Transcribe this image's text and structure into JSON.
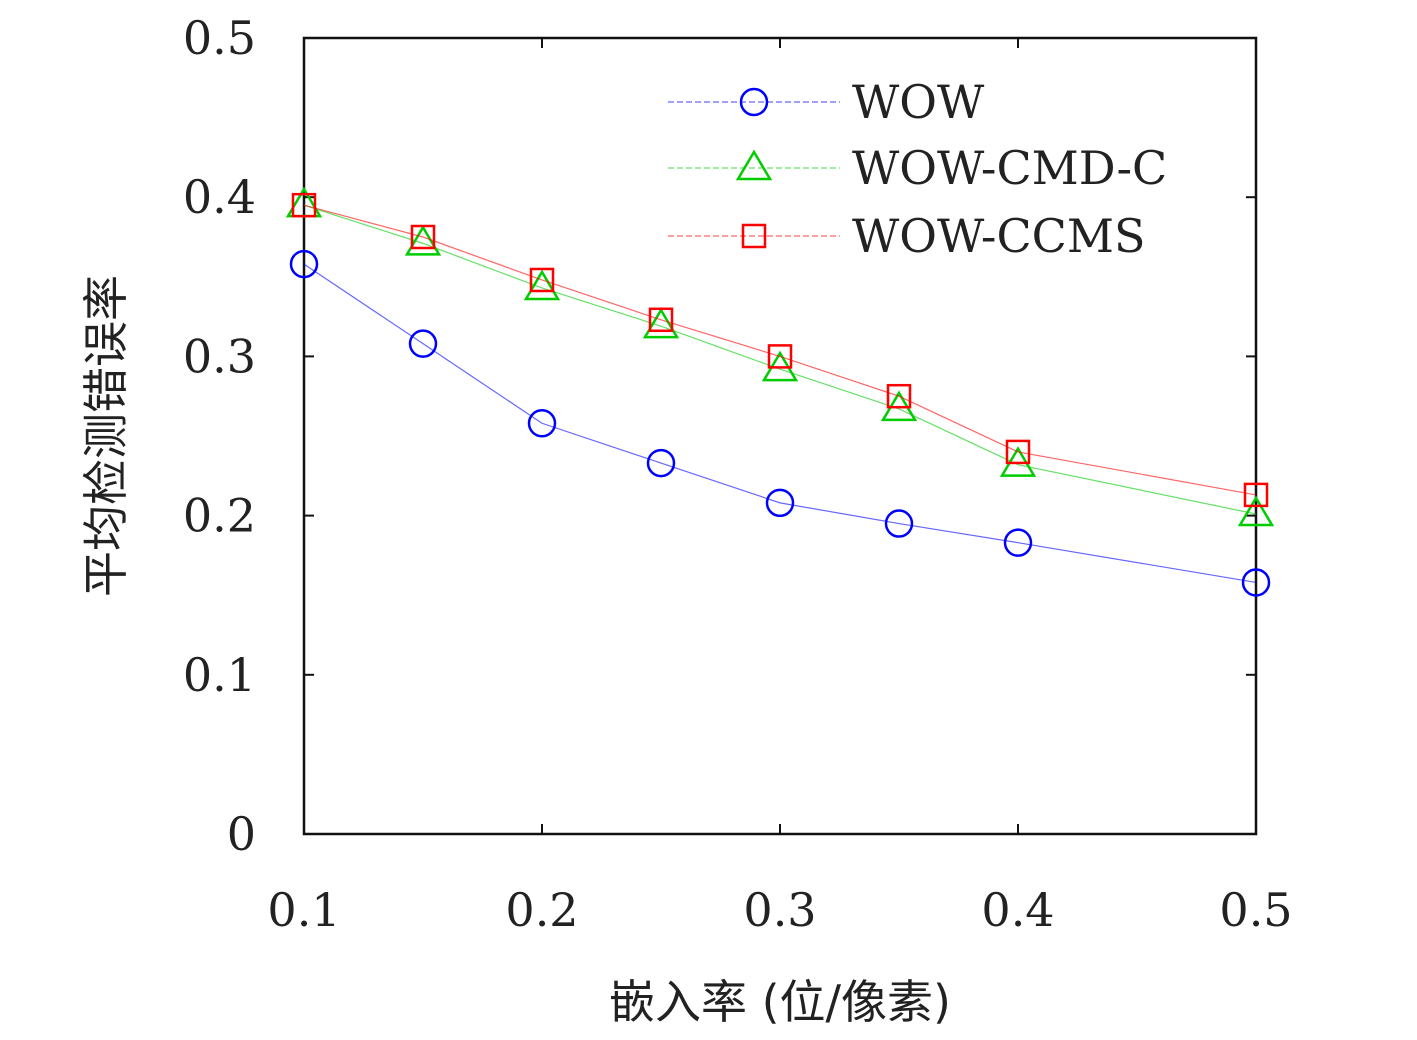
{
  "chart_data": {
    "type": "line",
    "xlabel": "嵌入率 (位/像素)",
    "ylabel": "平均检测错误率",
    "xlim": [
      0.1,
      0.5
    ],
    "ylim": [
      0,
      0.5
    ],
    "x_ticks": [
      "0.1",
      "0.2",
      "0.3",
      "0.4",
      "0.5"
    ],
    "y_ticks": [
      "0",
      "0.1",
      "0.2",
      "0.3",
      "0.4",
      "0.5"
    ],
    "grid": false,
    "legend_position": "top-right",
    "x": [
      0.1,
      0.15,
      0.2,
      0.25,
      0.3,
      0.35,
      0.4,
      0.5
    ],
    "series": [
      {
        "name": "WOW",
        "color": "#0000ff",
        "marker": "circle",
        "values": [
          0.358,
          0.308,
          0.258,
          0.233,
          0.208,
          0.195,
          0.183,
          0.158
        ]
      },
      {
        "name": "WOW-CMD-C",
        "color": "#00cc00",
        "marker": "triangle",
        "values": [
          0.395,
          0.371,
          0.343,
          0.319,
          0.292,
          0.267,
          0.232,
          0.201
        ]
      },
      {
        "name": "WOW-CCMS",
        "color": "#ff0000",
        "marker": "square",
        "values": [
          0.395,
          0.375,
          0.348,
          0.323,
          0.3,
          0.275,
          0.24,
          0.213
        ]
      }
    ]
  }
}
